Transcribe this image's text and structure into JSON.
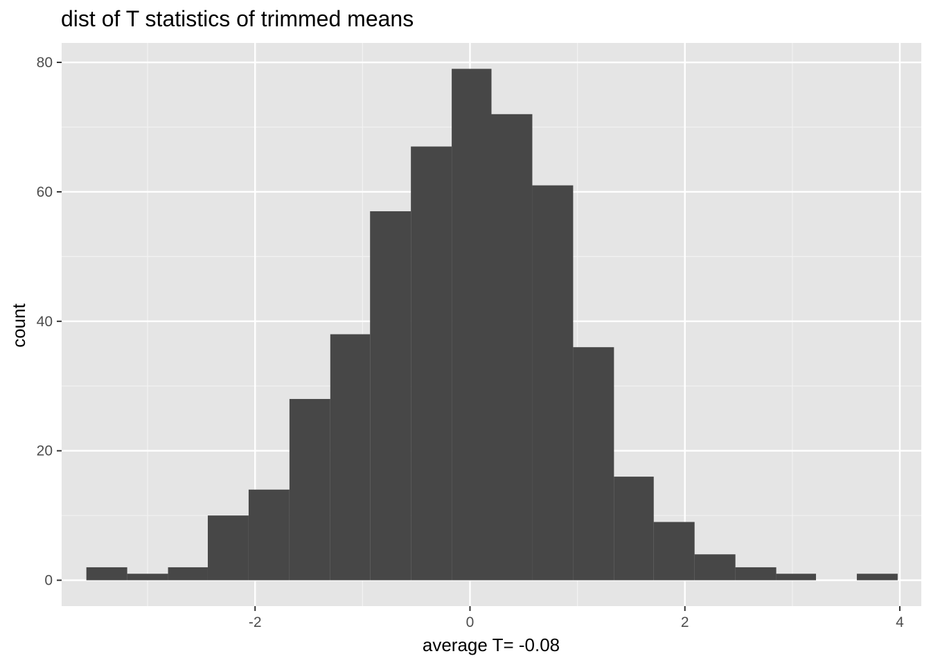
{
  "chart_data": {
    "type": "bar",
    "title": "dist of T statistics of trimmed means",
    "xlabel": "average T= -0.08",
    "ylabel": "count",
    "xlim": [
      -3.8,
      4.2
    ],
    "ylim": [
      -4,
      83
    ],
    "x_ticks": [
      -2,
      0,
      2,
      4
    ],
    "x_tick_labels": [
      "-2",
      "0",
      "2",
      "4"
    ],
    "y_ticks": [
      0,
      20,
      40,
      60,
      80
    ],
    "y_tick_labels": [
      "0",
      "20",
      "40",
      "60",
      "80"
    ],
    "x_minor_gridlines": [
      -3,
      -1,
      1,
      3
    ],
    "y_minor_gridlines": [
      10,
      30,
      50,
      70
    ],
    "grid": true,
    "legend": "none",
    "bin_width": 0.3774,
    "bins": [
      {
        "x0": -3.57,
        "x1": -3.19,
        "count": 2
      },
      {
        "x0": -3.19,
        "x1": -2.81,
        "count": 1
      },
      {
        "x0": -2.81,
        "x1": -2.44,
        "count": 2
      },
      {
        "x0": -2.44,
        "x1": -2.06,
        "count": 10
      },
      {
        "x0": -2.06,
        "x1": -1.68,
        "count": 14
      },
      {
        "x0": -1.68,
        "x1": -1.3,
        "count": 28
      },
      {
        "x0": -1.3,
        "x1": -0.93,
        "count": 38
      },
      {
        "x0": -0.93,
        "x1": -0.55,
        "count": 57
      },
      {
        "x0": -0.55,
        "x1": -0.17,
        "count": 67
      },
      {
        "x0": -0.17,
        "x1": 0.2,
        "count": 79
      },
      {
        "x0": 0.2,
        "x1": 0.58,
        "count": 72
      },
      {
        "x0": 0.58,
        "x1": 0.96,
        "count": 61
      },
      {
        "x0": 0.96,
        "x1": 1.34,
        "count": 36
      },
      {
        "x0": 1.34,
        "x1": 1.71,
        "count": 16
      },
      {
        "x0": 1.71,
        "x1": 2.09,
        "count": 9
      },
      {
        "x0": 2.09,
        "x1": 2.47,
        "count": 4
      },
      {
        "x0": 2.47,
        "x1": 2.85,
        "count": 2
      },
      {
        "x0": 2.85,
        "x1": 3.22,
        "count": 1
      },
      {
        "x0": 3.22,
        "x1": 3.6,
        "count": 0
      },
      {
        "x0": 3.6,
        "x1": 3.98,
        "count": 1
      }
    ],
    "colors": {
      "bar": "#474747",
      "panel": "#e5e5e5",
      "grid_major": "#ffffff",
      "grid_minor": "#f2f2f2",
      "tick_text": "#4d4d4d"
    }
  }
}
